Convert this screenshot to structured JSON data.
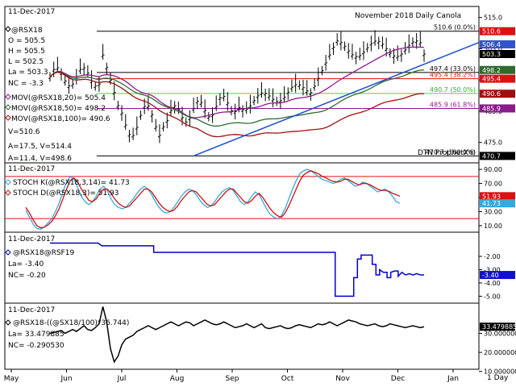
{
  "chart_data": [
    {
      "type": "candlestick",
      "title": "November 2018 Daily Canola",
      "date": "11-Dec-2017",
      "symbol": "@RSX18",
      "quote": {
        "open": "O = 505.5",
        "high": "H = 505.5",
        "low": "L = 502.5",
        "last": "La = 503.3",
        "net_change": "NC = -3.3",
        "volume": "V=510.6"
      },
      "moving_averages": [
        {
          "name": "MOV(@RSX18,20)= 505.4",
          "color": "#8b1a8b",
          "value": 505.4
        },
        {
          "name": "MOV(@RSX18,50)= 498.2",
          "color": "#2f6b2f",
          "value": 498.2
        },
        {
          "name": "MOV(@RSX18,100)= 490.6",
          "color": "#a01010",
          "value": 490.6
        }
      ],
      "misc_labels": [
        "A=17.5, V=514.4",
        "A=11.4, V=498.6"
      ],
      "fib_levels": [
        {
          "value": 510.6,
          "label": "510.6 (0.0%)"
        },
        {
          "value": 497.4,
          "label": "497.4 (33.0%)"
        },
        {
          "value": 495.4,
          "label": "495.4 (38.2%)"
        },
        {
          "value": 490.7,
          "label": "490.7 (50.0%)"
        },
        {
          "value": 485.9,
          "label": "485.9 (61.8%)"
        },
        {
          "value": 470.7,
          "label": "470.7 (100.0%)"
        }
      ],
      "y_ticks": [
        515,
        505,
        495,
        485,
        475
      ],
      "y_tick_labels": [
        "515.0",
        "505.0",
        "495.0",
        "485.0",
        "475.0"
      ],
      "y_range": [
        469,
        518
      ],
      "price_flags": [
        {
          "label": "510.6",
          "value": 510.6,
          "color": "#e01010",
          "text": "#ffffff"
        },
        {
          "label": "506.4",
          "value": 506.4,
          "color": "#3355cc",
          "text": "#ffffff"
        },
        {
          "label": "503.3",
          "value": 503.3,
          "color": "#000000",
          "text": "#ffffff"
        },
        {
          "label": "498.2",
          "value": 498.2,
          "color": "#2f6b2f",
          "text": "#ffffff"
        },
        {
          "label": "495.4",
          "value": 495.4,
          "color": "#e01010",
          "text": "#ffffff"
        },
        {
          "label": "490.6",
          "value": 490.6,
          "color": "#a01010",
          "text": "#ffffff"
        },
        {
          "label": "485.9",
          "value": 485.9,
          "color": "#8b1a8b",
          "text": "#ffffff"
        },
        {
          "label": "470.7",
          "value": 470.7,
          "color": "#000000",
          "text": "#ffffff"
        }
      ],
      "watermark": "DTN ProphetX®",
      "x_labels": [
        "May",
        "Jun",
        "Jul",
        "Aug",
        "Sep",
        "Oct",
        "Nov",
        "Dec",
        "Jan"
      ],
      "timeframe": "1 Day"
    },
    {
      "type": "line",
      "date": "11-Dec-2017",
      "series": [
        {
          "name": "STOCH K(@RSX18,3,14)= 41.73",
          "color": "#33aadd",
          "last": 41.73
        },
        {
          "name": "STOCH D(@RSX18,3)= 51.93",
          "color": "#cc1111",
          "last": 51.93
        }
      ],
      "y_ticks": [
        90,
        70,
        50,
        30,
        10
      ],
      "y_tick_labels": [
        "90.00",
        "70.00",
        "50.00",
        "30.00",
        "10.00"
      ],
      "y_range": [
        3,
        97
      ],
      "levels": [
        80,
        20
      ],
      "flags": [
        {
          "label": "51.93",
          "value": 51.93,
          "color": "#e01010"
        },
        {
          "label": "41.73",
          "value": 41.73,
          "color": "#33aadd"
        }
      ],
      "k": [
        32,
        22,
        12,
        6,
        5,
        8,
        14,
        20,
        30,
        42,
        58,
        72,
        80,
        76,
        64,
        52,
        44,
        40,
        44,
        52,
        62,
        66,
        60,
        48,
        40,
        36,
        34,
        36,
        42,
        48,
        56,
        62,
        66,
        62,
        54,
        44,
        36,
        30,
        28,
        30,
        36,
        44,
        52,
        58,
        62,
        60,
        54,
        46,
        40,
        36,
        38,
        44,
        52,
        58,
        62,
        64,
        60,
        52,
        44,
        40,
        44,
        52,
        58,
        54,
        44,
        34,
        26,
        22,
        20,
        24,
        34,
        48,
        62,
        74,
        84,
        88,
        90,
        88,
        84,
        80,
        76,
        74,
        72,
        70,
        72,
        76,
        78,
        74,
        70,
        66,
        68,
        72,
        70,
        66,
        62,
        58,
        60,
        62,
        58,
        52,
        44,
        41.73
      ],
      "d": [
        36,
        28,
        18,
        10,
        7,
        8,
        11,
        16,
        24,
        34,
        48,
        62,
        74,
        78,
        72,
        62,
        54,
        46,
        44,
        48,
        56,
        62,
        62,
        56,
        48,
        42,
        38,
        36,
        38,
        44,
        50,
        56,
        62,
        62,
        58,
        50,
        42,
        36,
        32,
        30,
        32,
        38,
        46,
        52,
        58,
        60,
        58,
        52,
        46,
        40,
        38,
        40,
        46,
        52,
        58,
        62,
        62,
        56,
        50,
        44,
        42,
        46,
        52,
        56,
        50,
        42,
        34,
        28,
        24,
        22,
        28,
        38,
        50,
        62,
        74,
        82,
        86,
        88,
        86,
        84,
        80,
        78,
        75,
        73,
        72,
        73,
        76,
        76,
        73,
        70,
        68,
        70,
        70,
        68,
        65,
        62,
        60,
        60,
        59,
        56,
        54,
        51.93
      ]
    },
    {
      "type": "line",
      "date": "11-Dec-2017",
      "series": [
        {
          "name": "@RSX18@RSF19",
          "color": "#0000cc"
        }
      ],
      "quote": {
        "last": "La= -3.40",
        "net_change": "NC= -0.20"
      },
      "y_ticks": [
        -2.0,
        -3.0,
        -4.0,
        -5.0
      ],
      "y_tick_labels": [
        "-2.00",
        "-3.00",
        "-4.00",
        "-5.00"
      ],
      "y_range": [
        -5.4,
        -0.3
      ],
      "flags": [
        {
          "label": "-3.40",
          "value": -3.4,
          "color": "#1111cc"
        }
      ],
      "values": [
        -1.0,
        -1.0,
        -1.0,
        -1.0,
        -1.0,
        -1.0,
        -1.0,
        -1.0,
        -1.0,
        -1.0,
        -1.0,
        -1.0,
        -1.0,
        -1.0,
        -1.2,
        -1.2,
        -1.2,
        -1.2,
        -1.2,
        -1.2,
        -1.2,
        -1.2,
        -1.2,
        -1.2,
        -1.2,
        -1.2,
        -1.2,
        -1.2,
        -1.7,
        -1.7,
        -1.7,
        -1.7,
        -1.7,
        -1.7,
        -1.7,
        -1.7,
        -1.7,
        -1.7,
        -1.7,
        -1.7,
        -1.7,
        -1.7,
        -1.7,
        -1.7,
        -1.7,
        -1.7,
        -1.7,
        -1.7,
        -1.7,
        -1.7,
        -1.7,
        -1.7,
        -1.7,
        -1.7,
        -1.7,
        -1.7,
        -1.7,
        -1.7,
        -1.7,
        -1.7,
        -1.7,
        -1.7,
        -1.7,
        -1.7,
        -1.7,
        -1.7,
        -1.7,
        -1.7,
        -1.7,
        -1.7,
        -1.7,
        -1.7,
        -1.7,
        -1.7,
        -1.7,
        -1.7,
        -1.7,
        -5.0,
        -5.0,
        -5.0,
        -5.0,
        -5.0,
        -3.6,
        -2.2,
        -1.9,
        -1.9,
        -1.9,
        -2.6,
        -3.4,
        -3.0,
        -3.2,
        -3.6,
        -3.2,
        -3.1,
        -3.5,
        -3.2,
        -3.4,
        -3.3,
        -3.4,
        -3.3,
        -3.4,
        -3.4
      ]
    },
    {
      "type": "line",
      "date": "11-Dec-2017",
      "series": [
        {
          "name": "@RSX18-((@SX18/100)*36.744)",
          "color": "#000000"
        }
      ],
      "quote": {
        "last": "La= 33.479885",
        "net_change": "NC= -0.290530"
      },
      "y_ticks": [
        30,
        20,
        10
      ],
      "y_tick_labels": [
        "30.000000",
        "20.000000",
        "10.000000"
      ],
      "y_range": [
        12,
        45
      ],
      "flags": [
        {
          "label": "33.479885",
          "value": 33.479885,
          "color": "#000000"
        }
      ],
      "values": [
        30,
        30.5,
        31,
        31.5,
        30,
        31,
        32,
        31,
        32.5,
        34,
        32,
        31.5,
        33,
        35,
        44,
        36,
        22,
        15,
        18,
        24,
        27,
        28,
        29,
        31,
        32,
        33,
        34,
        33,
        32,
        33,
        34,
        35,
        36,
        35,
        34,
        35,
        36,
        35.5,
        34,
        35,
        36,
        37,
        36,
        35,
        34.5,
        35,
        36,
        35,
        34,
        33,
        33.5,
        34,
        35,
        34,
        33,
        34,
        35,
        33,
        32.5,
        33,
        33.5,
        34,
        33,
        32.5,
        33,
        34,
        34.5,
        34,
        33.5,
        33,
        34,
        35,
        34.5,
        35,
        36,
        35,
        34,
        35,
        36,
        37,
        36.5,
        36,
        35,
        34.5,
        34,
        34.5,
        35,
        34,
        33.5,
        34,
        35,
        34.5,
        34,
        33.5,
        33,
        33.5,
        34,
        33.5,
        33,
        33.479885
      ]
    }
  ]
}
